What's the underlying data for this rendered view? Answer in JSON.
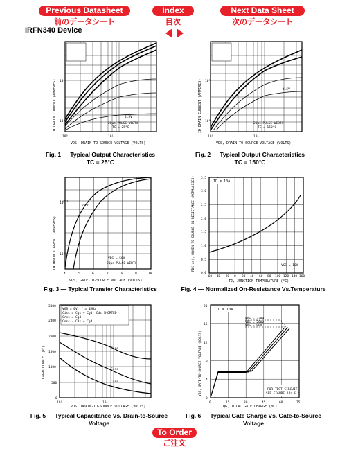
{
  "nav": {
    "prev_label": "Previous Datasheet",
    "prev_sub": "前のデータシート",
    "index_label": "Index",
    "index_sub": "目次",
    "next_label": "Next Data Sheet",
    "next_sub": "次のデータシート",
    "order_label": "To Order",
    "order_sub": "ご注文"
  },
  "device": "IRFN340 Device",
  "colors": {
    "accent": "#e8202a"
  },
  "figures": [
    {
      "caption": "Fig. 1 — Typical Output Characteristics",
      "caption2": "TC = 25°C",
      "ylabel": "ID DRAIN CURRENT (AMPERES)",
      "xlabel": "VDS, DRAIN-TO-SOURCE VOLTAGE (VOLTS)",
      "note1": "4.5V",
      "note2": "20µs PULSE WIDTH",
      "note3": "TC = 25°C",
      "xticks": [
        "10⁰",
        "10¹"
      ],
      "yticks": [
        "10¹",
        "10⁰"
      ]
    },
    {
      "caption": "Fig. 2 — Typical Output Characteristics",
      "caption2": "TC = 150°C",
      "ylabel": "ID DRAIN CURRENT (AMPERES)",
      "xlabel": "VDS, DRAIN-TO-SOURCE VOLTAGE (VOLTS)",
      "note1": "4.5V",
      "note2": "20µs PULSE WIDTH",
      "note3": "TC = 150°C",
      "xticks": [
        "10⁰",
        "10¹"
      ],
      "yticks": [
        "10¹",
        "10⁰"
      ]
    },
    {
      "caption": "Fig. 3 — Typical Transfer Characteristics",
      "ylabel": "ID DRAIN CURRENT (AMPERES)",
      "xlabel": "VGS, GATE-TO-SOURCE VOLTAGE (VOLTS)",
      "note1": "150°C",
      "note2": "25°C",
      "note3": "VDS = 50V",
      "note4": "20µs PULSE WIDTH",
      "xticks": [
        "4",
        "5",
        "6",
        "7",
        "8",
        "9",
        "10"
      ],
      "yticks": [
        "10¹",
        "10⁰"
      ]
    },
    {
      "caption": "Fig. 4 — Normalized On-Resistance Vs.Temperature",
      "ylabel": "RDS(on), DRAIN-TO-SOURCE ON RESISTANCE (NORMALIZED)",
      "xlabel": "TJ, JUNCTION TEMPERATURE (°C)",
      "note1": "ID = 10A",
      "note2": "VGS = 10V",
      "xticks": [
        "-60",
        "-40",
        "-20",
        "0",
        "20",
        "40",
        "60",
        "80",
        "100",
        "120",
        "140",
        "160"
      ],
      "yticks": [
        "3.5",
        "3.0",
        "2.5",
        "2.0",
        "1.5",
        "1.0",
        "0.5",
        "0.0"
      ]
    },
    {
      "caption": "Fig. 5 — Typical Capacitance Vs. Drain-to-Source",
      "caption2": "Voltage",
      "ylabel": "C, CAPACITANCE (pF)",
      "xlabel": "VDS, DRAIN-TO-SOURCE VOLTAGE (VOLTS)",
      "note1": "VGS = 0V, f = 1MHz",
      "note2": "Ciss = Cgs + Cgd, Cds SHORTED",
      "note3": "Crss = Cgd",
      "note4": "Coss = Cds + Cgd",
      "s1": "Ciss",
      "s2": "Coss",
      "s3": "Crss",
      "xticks": [
        "10⁰",
        "10¹"
      ],
      "yticks": [
        "3000",
        "2400",
        "2000",
        "1500",
        "1000",
        "500",
        "0"
      ]
    },
    {
      "caption": "Fig. 6 — Typical Gate Charge Vs. Gate-to-Source",
      "caption2": "Voltage",
      "ylabel": "VGS, GATE-TO-SOURCE VOLTAGE (VOLTS)",
      "xlabel": "QG, TOTAL GATE CHARGE (nC)",
      "note1": "ID = 10A",
      "note2": "VDS = 320V",
      "note3": "VDS = 200V",
      "note4": "VDS = 80V",
      "note5": "FOR TEST CIRCUIT",
      "note6": "SEE FIGURE 14a & b",
      "xticks": [
        "0",
        "15",
        "30",
        "45",
        "60",
        "75"
      ],
      "yticks": [
        "20",
        "16",
        "12",
        "8",
        "4",
        "0"
      ]
    }
  ]
}
